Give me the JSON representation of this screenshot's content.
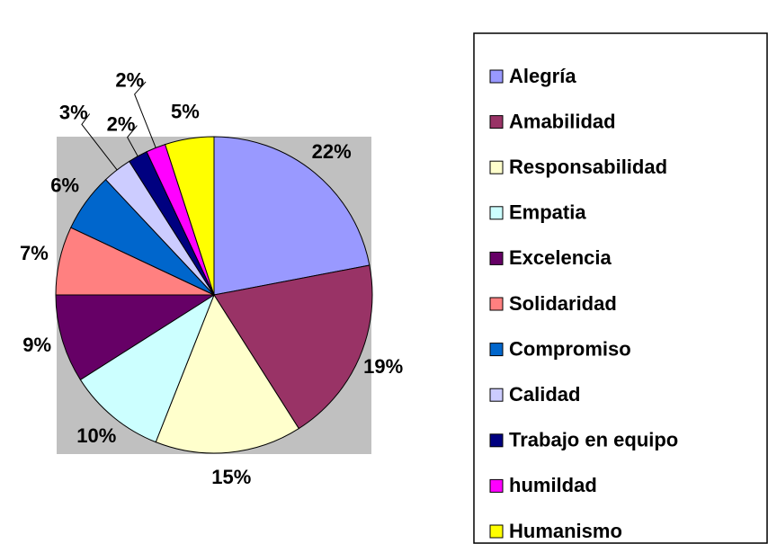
{
  "chart_data": {
    "type": "pie",
    "categories": [
      "Alegría",
      "Amabilidad",
      "Responsabilidad",
      "Empatia",
      "Excelencia",
      "Solidaridad",
      "Compromiso",
      "Calidad",
      "Trabajo en equipo",
      "humildad",
      "Humanismo"
    ],
    "values": [
      22,
      19,
      15,
      10,
      9,
      7,
      6,
      3,
      2,
      2,
      5
    ],
    "value_labels": [
      "22%",
      "19%",
      "15%",
      "10%",
      "9%",
      "7%",
      "6%",
      "3%",
      "2%",
      "2%",
      "5%"
    ],
    "colors": [
      "#9999ff",
      "#993366",
      "#ffffcc",
      "#ccffff",
      "#660066",
      "#ff8080",
      "#0066cc",
      "#ccccff",
      "#000080",
      "#ff00ff",
      "#ffff00"
    ],
    "legend": "right"
  }
}
